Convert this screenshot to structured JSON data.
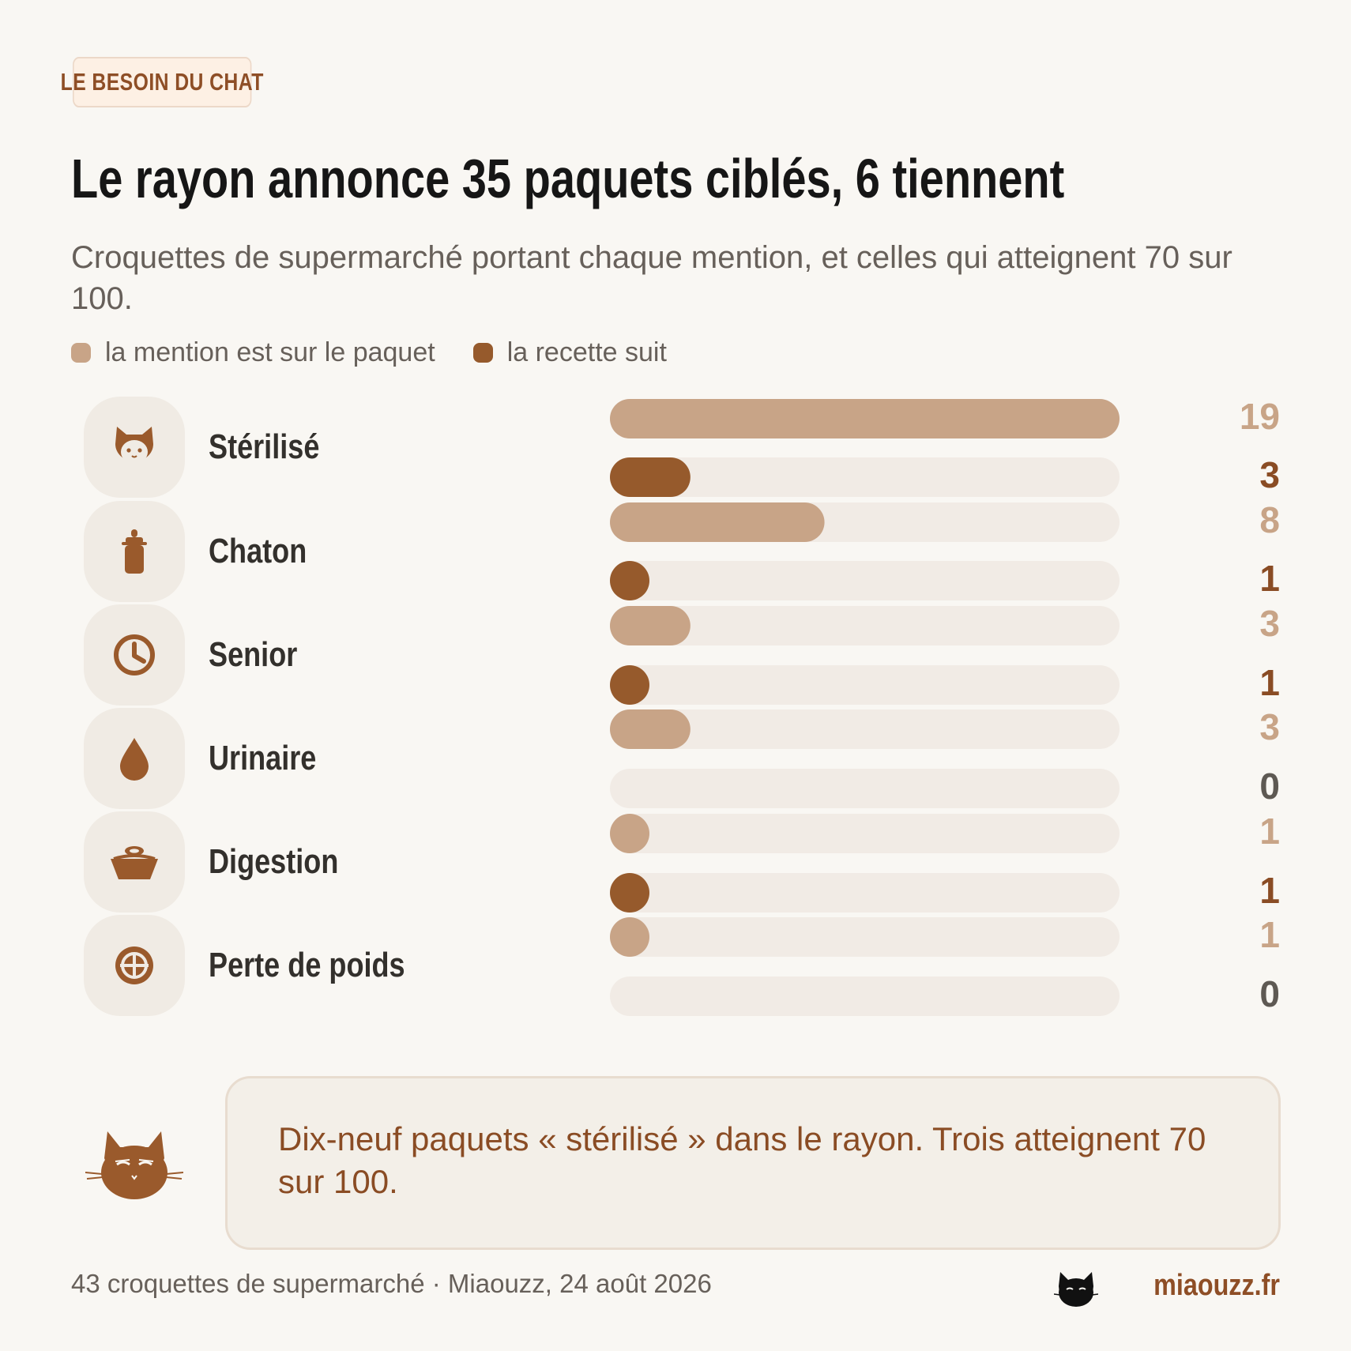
{
  "tag": "LE BESOIN DU CHAT",
  "title": "Le rayon annonce 35 paquets ciblés, 6 tiennent",
  "subtitle": "Croquettes de supermarché portant chaque mention, et celles qui atteignent 70 sur 100.",
  "legend": [
    {
      "label": "la mention est sur le paquet",
      "color": "#c8a487"
    },
    {
      "label": "la recette suit",
      "color": "#965a2c"
    }
  ],
  "colors": {
    "mention": "#c8a487",
    "recette": "#965a2c",
    "track": "#f1ebe5",
    "zero": "#5e5953",
    "accent": "#9a5a2c"
  },
  "categories": [
    {
      "label": "Stérilisé",
      "icon": "cat-face-icon"
    },
    {
      "label": "Chaton",
      "icon": "baby-bottle-icon"
    },
    {
      "label": "Senior",
      "icon": "clock-icon"
    },
    {
      "label": "Urinaire",
      "icon": "water-drop-icon"
    },
    {
      "label": "Digestion",
      "icon": "food-bowl-icon"
    },
    {
      "label": "Perte de poids",
      "icon": "globe-icon"
    }
  ],
  "chart_data": {
    "type": "bar",
    "orientation": "horizontal",
    "categories": [
      "Stérilisé",
      "Chaton",
      "Senior",
      "Urinaire",
      "Digestion",
      "Perte de poids"
    ],
    "series": [
      {
        "name": "la mention est sur le paquet",
        "values": [
          19,
          8,
          3,
          3,
          1,
          1
        ]
      },
      {
        "name": "la recette suit",
        "values": [
          3,
          1,
          1,
          0,
          1,
          0
        ]
      }
    ],
    "xlim": [
      0,
      19
    ]
  },
  "callout": "Dix-neuf paquets « stérilisé » dans le rayon. Trois atteignent 70 sur 100.",
  "footer": {
    "source": "43 croquettes de supermarché · Miaouzz, 24 août 2026",
    "brand": "miaouzz.fr"
  }
}
